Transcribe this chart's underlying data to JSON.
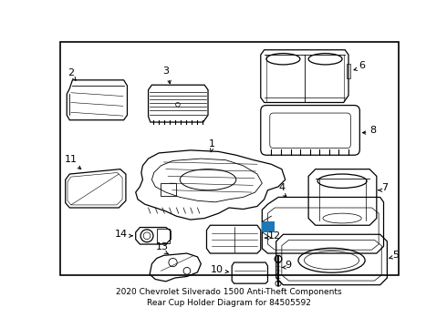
{
  "title": "2020 Chevrolet Silverado 1500 Anti-Theft Components\nRear Cup Holder Diagram for 84505592",
  "background_color": "#ffffff",
  "border_color": "#000000",
  "text_color": "#000000",
  "line_color": "#000000",
  "title_fontsize": 6.5
}
